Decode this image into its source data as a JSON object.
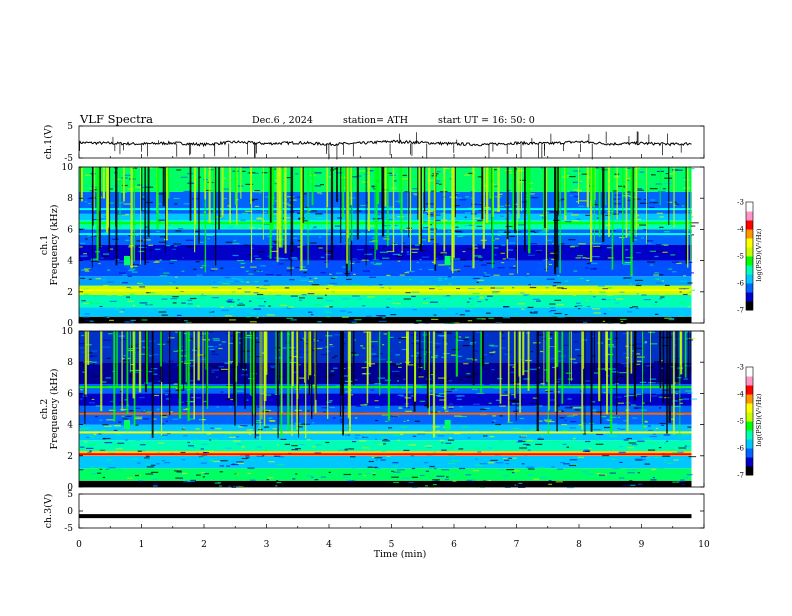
{
  "header": {
    "title": "VLF  Spectra",
    "date": "Dec.6  , 2024",
    "station": "station= ATH",
    "start": "start  UT  =   16: 50: 0"
  },
  "chart_data": [
    {
      "type": "line",
      "panel": "ch1-waveform",
      "ylabel": "ch.1(V)",
      "ylim": [
        -5,
        5
      ],
      "y_tick_labels": [
        "5",
        "-5"
      ],
      "x": [
        0,
        0.5,
        1,
        1.5,
        2,
        2.5,
        3,
        3.5,
        4,
        4.5,
        5,
        5.5,
        6,
        6.5,
        7,
        7.5,
        8,
        8.5,
        9,
        9.5,
        9.8
      ],
      "values": [
        -0.2,
        -0.4,
        -0.6,
        -0.3,
        -0.8,
        0.0,
        -0.5,
        -0.2,
        -0.7,
        -0.4,
        0.2,
        -0.2,
        -0.6,
        -0.8,
        -0.3,
        -0.5,
        0.1,
        -0.6,
        -0.4,
        -0.7,
        -0.5
      ],
      "color": "#000000"
    },
    {
      "type": "heatmap",
      "panel": "ch1-spectrogram",
      "ylabel": "Frequency  (kHz)",
      "channel_label": "ch.1",
      "ylim": [
        0,
        10
      ],
      "y_tick_labels": [
        "0",
        "2",
        "4",
        "6",
        "8",
        "10"
      ],
      "colorbar": {
        "label": "log(PSD)(V²/Hz)",
        "range": [
          -7,
          -3
        ],
        "tick_labels": [
          "-3",
          "-4",
          "-5",
          "-6",
          "-7"
        ],
        "colors": [
          "#000000",
          "#0000c8",
          "#0064ff",
          "#00c8ff",
          "#00ffb4",
          "#00ff00",
          "#c8ff00",
          "#ffff00",
          "#ff9600",
          "#ff0000",
          "#ff96c8",
          "#ffffff"
        ]
      },
      "bands": [
        {
          "f_low": 0.0,
          "f_high": 0.4,
          "color": "#000000"
        },
        {
          "f_low": 0.4,
          "f_high": 1.0,
          "color": "#00c8ff"
        },
        {
          "f_low": 1.0,
          "f_high": 1.8,
          "color": "#00ffb4"
        },
        {
          "f_low": 1.8,
          "f_high": 2.4,
          "color": "#c8ff00"
        },
        {
          "f_low": 2.4,
          "f_high": 3.0,
          "color": "#00a0ff"
        },
        {
          "f_low": 3.0,
          "f_high": 4.0,
          "color": "#0050ff"
        },
        {
          "f_low": 4.0,
          "f_high": 5.0,
          "color": "#0000c8"
        },
        {
          "f_low": 5.0,
          "f_high": 6.0,
          "color": "#0064ff"
        },
        {
          "f_low": 6.0,
          "f_high": 6.6,
          "color": "#00ffb4"
        },
        {
          "f_low": 6.6,
          "f_high": 7.0,
          "color": "#00c8ff"
        },
        {
          "f_low": 7.0,
          "f_high": 8.4,
          "color": "#0064ff"
        },
        {
          "f_low": 8.4,
          "f_high": 10.0,
          "color": "#00ff64"
        }
      ],
      "lines": [
        {
          "f": 6.4,
          "color": "#00ff00"
        },
        {
          "f": 2.1,
          "color": "#ffff00"
        },
        {
          "f": 5.7,
          "color": "#00ffff"
        },
        {
          "f": 7.3,
          "color": "#00ffff"
        }
      ]
    },
    {
      "type": "heatmap",
      "panel": "ch2-spectrogram",
      "ylabel": "Frequency  (kHz)",
      "channel_label": "ch.2",
      "ylim": [
        0,
        10
      ],
      "y_tick_labels": [
        "0",
        "2",
        "4",
        "6",
        "8",
        "10"
      ],
      "colorbar": {
        "label": "log(PSD)(V²/Hz)",
        "range": [
          -7,
          -3
        ],
        "tick_labels": [
          "-3",
          "-4",
          "-5",
          "-6",
          "-7"
        ],
        "colors": [
          "#000000",
          "#0000c8",
          "#0064ff",
          "#00c8ff",
          "#00ffb4",
          "#00ff00",
          "#c8ff00",
          "#ffff00",
          "#ff9600",
          "#ff0000",
          "#ff96c8",
          "#ffffff"
        ]
      },
      "bands": [
        {
          "f_low": 0.0,
          "f_high": 0.4,
          "color": "#000000"
        },
        {
          "f_low": 0.4,
          "f_high": 1.2,
          "color": "#00ff64"
        },
        {
          "f_low": 1.2,
          "f_high": 2.0,
          "color": "#00c8ff"
        },
        {
          "f_low": 2.0,
          "f_high": 2.3,
          "color": "#ffc800"
        },
        {
          "f_low": 2.3,
          "f_high": 3.0,
          "color": "#00ffb4"
        },
        {
          "f_low": 3.0,
          "f_high": 4.0,
          "color": "#00c8ff"
        },
        {
          "f_low": 4.0,
          "f_high": 5.2,
          "color": "#0064ff"
        },
        {
          "f_low": 5.2,
          "f_high": 6.0,
          "color": "#0000c8"
        },
        {
          "f_low": 6.0,
          "f_high": 6.6,
          "color": "#0064ff"
        },
        {
          "f_low": 6.6,
          "f_high": 8.0,
          "color": "#000096"
        },
        {
          "f_low": 8.0,
          "f_high": 10.0,
          "color": "#0032c8"
        }
      ],
      "lines": [
        {
          "f": 6.4,
          "color": "#00ff00"
        },
        {
          "f": 4.7,
          "color": "#ff6400"
        },
        {
          "f": 2.1,
          "color": "#ff0000"
        },
        {
          "f": 3.5,
          "color": "#ffff00"
        }
      ]
    },
    {
      "type": "line",
      "panel": "ch3-waveform",
      "ylabel": "ch.3(V)",
      "ylim": [
        -5,
        5
      ],
      "y_tick_labels": [
        "5",
        "0",
        "-5"
      ],
      "x": [
        0,
        9.8
      ],
      "values": [
        -1.5,
        -1.5
      ],
      "color": "#000000"
    }
  ],
  "x_axis": {
    "label": "Time  (min)",
    "xlim": [
      0,
      10
    ],
    "tick_labels": [
      "0",
      "1",
      "2",
      "3",
      "4",
      "5",
      "6",
      "7",
      "8",
      "9",
      "10"
    ]
  }
}
